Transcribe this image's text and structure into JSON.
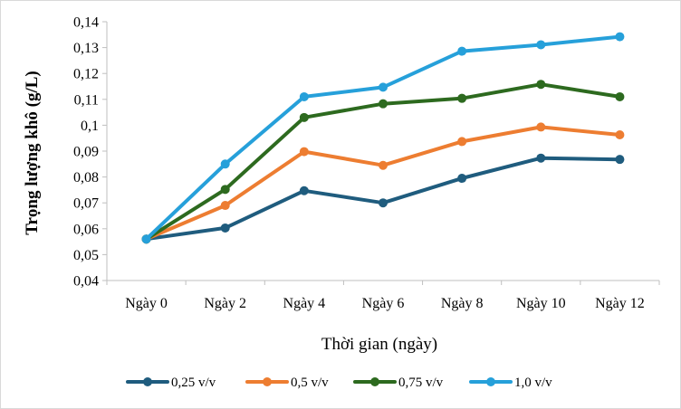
{
  "chart_data": {
    "type": "line",
    "categories": [
      "Ngày 0",
      "Ngày 2",
      "Ngày 4",
      "Ngày 6",
      "Ngày 8",
      "Ngày 10",
      "Ngày 12"
    ],
    "series": [
      {
        "name": "0,25 v/v",
        "color": "#1f5c7e",
        "values": [
          0.056,
          0.0603,
          0.0747,
          0.07,
          0.0795,
          0.0873,
          0.0868
        ]
      },
      {
        "name": "0,5 v/v",
        "color": "#ed7d31",
        "values": [
          0.056,
          0.069,
          0.0898,
          0.0845,
          0.0937,
          0.0993,
          0.0963
        ]
      },
      {
        "name": "0,75 v/v",
        "color": "#2d6a1f",
        "values": [
          0.056,
          0.0752,
          0.103,
          0.1083,
          0.1104,
          0.1158,
          0.111
        ]
      },
      {
        "name": "1,0 v/v",
        "color": "#26a0da",
        "values": [
          0.056,
          0.085,
          0.111,
          0.1147,
          0.1286,
          0.1311,
          0.1342
        ]
      }
    ],
    "xlabel": "Thời gian (ngày)",
    "ylabel": "Trọng lượng khô (g/L)",
    "ylim": [
      0.04,
      0.14
    ],
    "ytick_labels": [
      "0,04",
      "0,05",
      "0,06",
      "0,07",
      "0,08",
      "0,09",
      "0,1",
      "0,11",
      "0,12",
      "0,13",
      "0,14"
    ],
    "grid": false,
    "legend_position": "bottom"
  }
}
